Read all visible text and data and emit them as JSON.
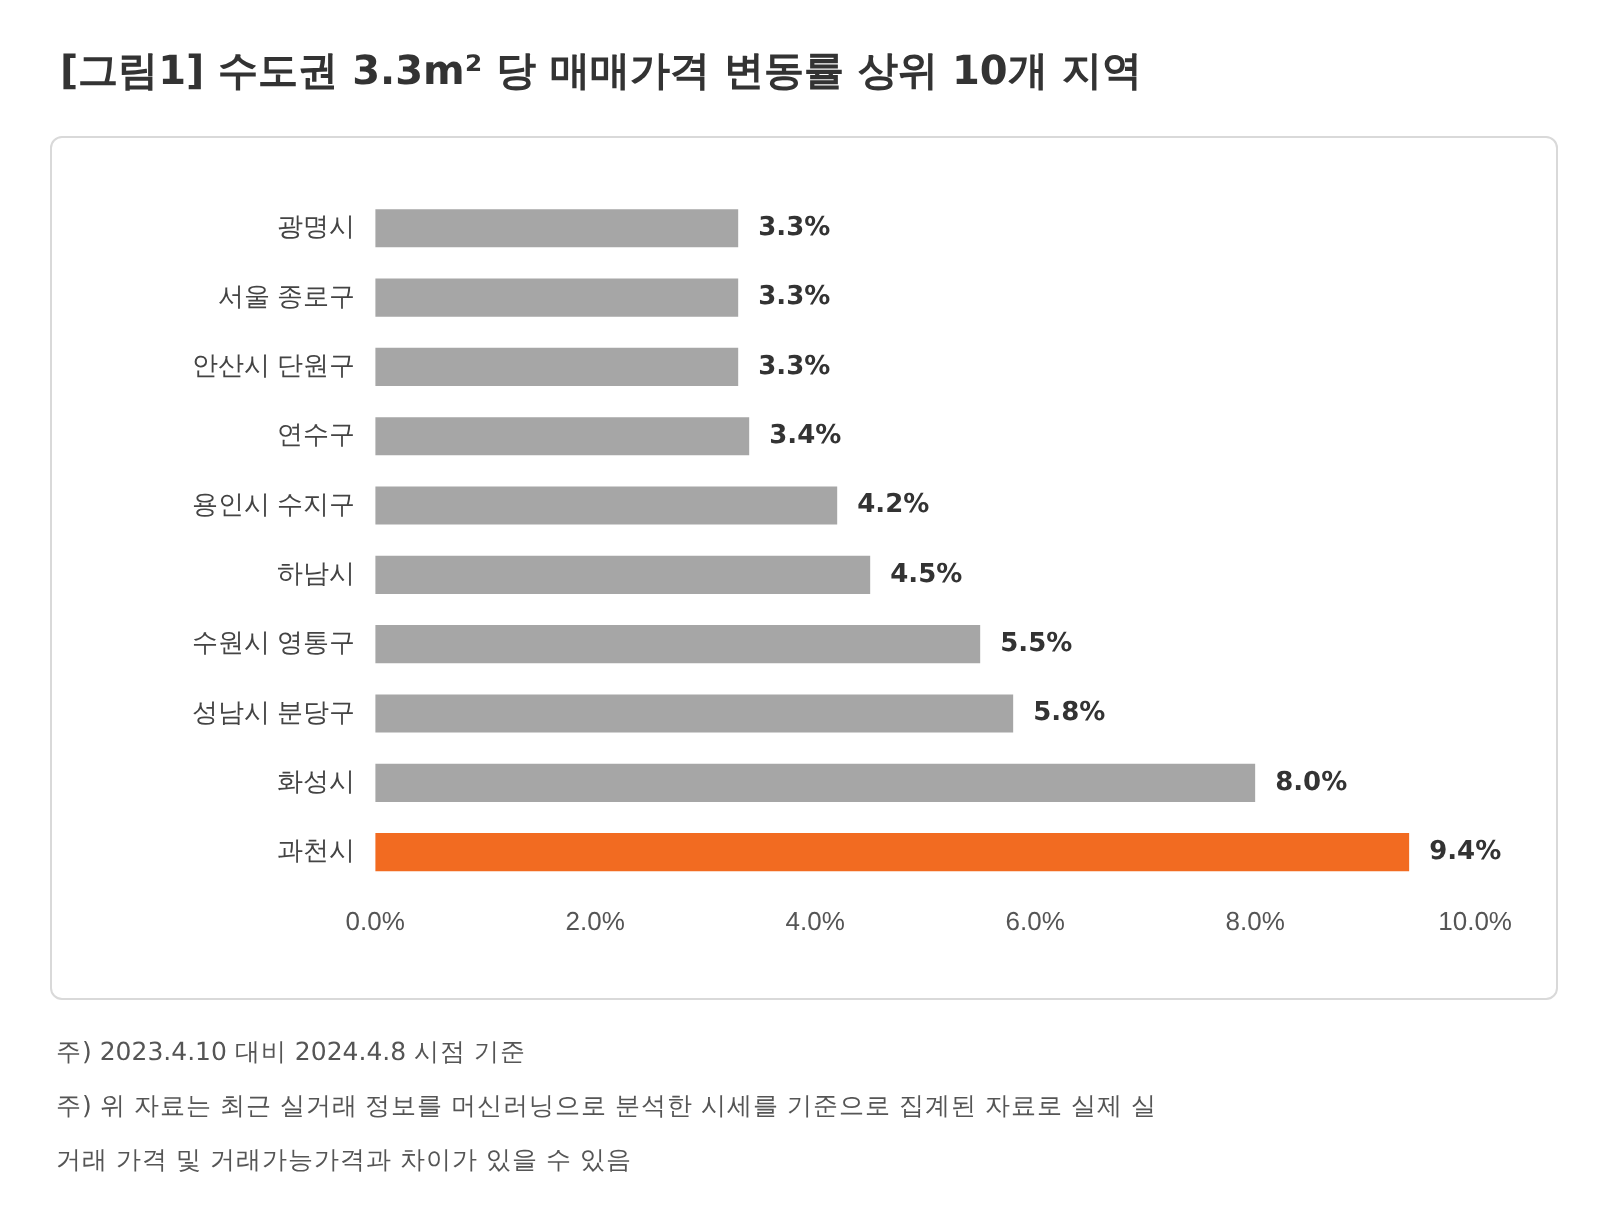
{
  "chart_data": {
    "type": "bar",
    "orientation": "horizontal",
    "title": "[그림1] 수도권 3.3m² 당 매매가격 변동률 상위 10개 지역",
    "categories": [
      "광명시",
      "서울 종로구",
      "안산시 단원구",
      "연수구",
      "용인시 수지구",
      "하남시",
      "수원시 영통구",
      "성남시 분당구",
      "화성시",
      "과천시"
    ],
    "values": [
      3.3,
      3.3,
      3.3,
      3.4,
      4.2,
      4.5,
      5.5,
      5.8,
      8.0,
      9.4
    ],
    "colors": [
      "#a6a6a6",
      "#a6a6a6",
      "#a6a6a6",
      "#a6a6a6",
      "#a6a6a6",
      "#a6a6a6",
      "#a6a6a6",
      "#a6a6a6",
      "#a6a6a6",
      "#f26b21"
    ],
    "value_labels": [
      "3.3%",
      "3.3%",
      "3.3%",
      "3.4%",
      "4.2%",
      "4.5%",
      "5.5%",
      "5.8%",
      "8.0%",
      "9.4%"
    ],
    "xlim": [
      0,
      10
    ],
    "xticks": [
      {
        "value": 0,
        "label": "0.0%"
      },
      {
        "value": 2,
        "label": "2.0%"
      },
      {
        "value": 4,
        "label": "4.0%"
      },
      {
        "value": 6,
        "label": "6.0%"
      },
      {
        "value": 8,
        "label": "8.0%"
      },
      {
        "value": 10,
        "label": "10.0%"
      }
    ],
    "grid": false,
    "legend": false,
    "annotations": [
      "주) 2023.4.10 대비 2024.4.8 시점 기준",
      "주) 위 자료는 최근 실거래 정보를 머신러닝으로 분석한 시세를 기준으로 집계된 자료로 실제 실거래 가격 및 거래가능가격과 차이가 있을 수 있음"
    ]
  }
}
